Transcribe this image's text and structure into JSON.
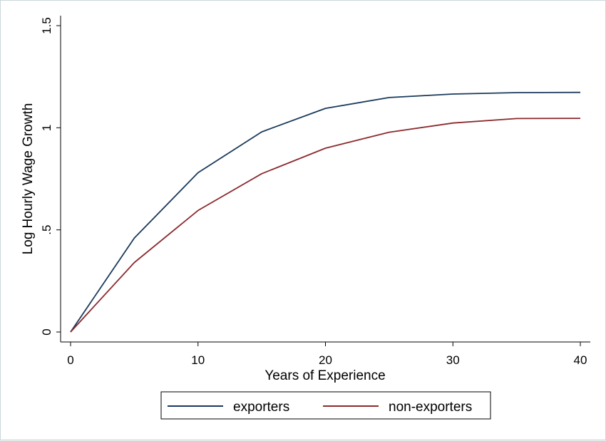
{
  "chart_data": {
    "type": "line",
    "title": "",
    "xlabel": "Years of Experience",
    "ylabel": "Log Hourly Wage Growth",
    "xlim": [
      0,
      40
    ],
    "ylim": [
      0,
      1.5
    ],
    "xticks": [
      0,
      10,
      20,
      30,
      40
    ],
    "xtick_labels": [
      "0",
      "10",
      "20",
      "30",
      "40"
    ],
    "yticks": [
      0,
      0.5,
      1,
      1.5
    ],
    "ytick_labels": [
      "0",
      ".5",
      "1",
      "1.5"
    ],
    "grid": false,
    "legend_position": "bottom",
    "x": [
      0,
      5,
      10,
      15,
      20,
      25,
      30,
      35,
      40
    ],
    "series": [
      {
        "name": "exporters",
        "color": "#1a3a5c",
        "values": [
          0,
          0.46,
          0.78,
          0.98,
          1.095,
          1.148,
          1.165,
          1.172,
          1.173
        ]
      },
      {
        "name": "non-exporters",
        "color": "#8b2a2e",
        "values": [
          0,
          0.34,
          0.595,
          0.775,
          0.9,
          0.978,
          1.023,
          1.045,
          1.046
        ]
      }
    ]
  }
}
